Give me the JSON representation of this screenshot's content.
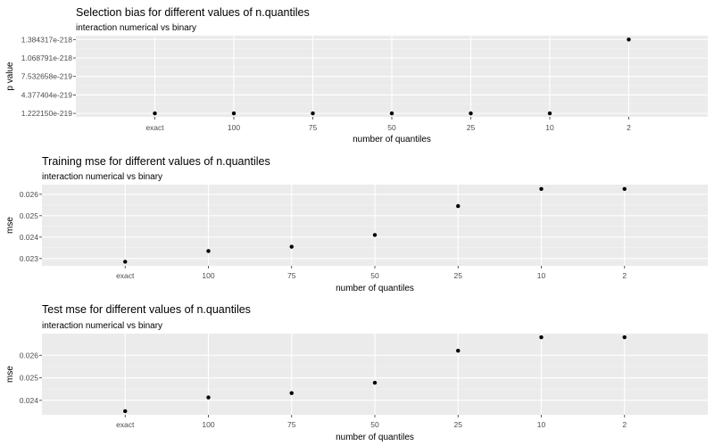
{
  "chart_data": [
    {
      "type": "scatter",
      "title": "Selection bias for different values of n.quantiles",
      "subtitle": "interaction numerical vs binary",
      "xlabel": "number of quantiles",
      "ylabel": "p value",
      "categories": [
        "exact",
        "100",
        "75",
        "50",
        "25",
        "10",
        "2"
      ],
      "values": [
        1.22215e-219,
        1.22215e-219,
        1.22215e-219,
        1.22215e-219,
        1.22215e-219,
        1.22215e-219,
        1.384317e-218
      ],
      "yticks": [
        1.22215e-219,
        4.377404e-219,
        7.532658e-219,
        1.068791e-218,
        1.384317e-218
      ],
      "ytick_labels": [
        "1.222150e-219",
        "4.377404e-219",
        "7.532658e-219",
        "1.068791e-218",
        "1.384317e-218"
      ],
      "ylim": [
        6.3e-220,
        1.45e-218
      ],
      "grid": true
    },
    {
      "type": "scatter",
      "title": "Training mse for different values of n.quantiles",
      "subtitle": "interaction numerical vs binary",
      "xlabel": "number of quantiles",
      "ylabel": "mse",
      "categories": [
        "exact",
        "100",
        "75",
        "50",
        "25",
        "10",
        "2"
      ],
      "values": [
        0.02285,
        0.02335,
        0.02355,
        0.0241,
        0.02545,
        0.02625,
        0.02625
      ],
      "yticks": [
        0.023,
        0.024,
        0.025,
        0.026
      ],
      "ytick_labels": [
        "0.023",
        "0.024",
        "0.025",
        "0.026"
      ],
      "ylim": [
        0.02266,
        0.02645
      ],
      "grid": true
    },
    {
      "type": "scatter",
      "title": "Test mse for different values of n.quantiles",
      "subtitle": "interaction numerical vs binary",
      "xlabel": "number of quantiles",
      "ylabel": "mse",
      "categories": [
        "exact",
        "100",
        "75",
        "50",
        "25",
        "10",
        "2"
      ],
      "values": [
        0.02352,
        0.02413,
        0.02432,
        0.02478,
        0.0262,
        0.0268,
        0.0268
      ],
      "yticks": [
        0.024,
        0.025,
        0.026
      ],
      "ytick_labels": [
        "0.024",
        "0.025",
        "0.026"
      ],
      "ylim": [
        0.02336,
        0.02696
      ],
      "grid": true
    }
  ]
}
